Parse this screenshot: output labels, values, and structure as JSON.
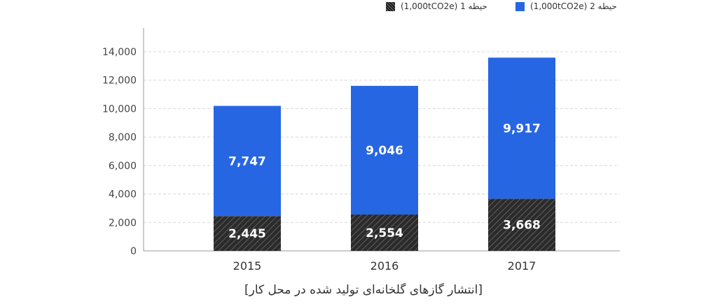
{
  "legend": {
    "scope2": "(1,000tCO2e) حیطه 2",
    "scope1": "(1,000tCO2e) حیطه 1"
  },
  "caption": "[انتشار گازهای گلخانه‌ای تولید شده در محل کار]",
  "colors": {
    "scope2": "#2766e3",
    "scope1": "#2b2b2b",
    "grid": "#d8d8d8",
    "axis": "#999999"
  },
  "chart_data": {
    "type": "bar",
    "stacked": true,
    "categories": [
      "2015",
      "2016",
      "2017"
    ],
    "series": [
      {
        "name": "(1,000tCO2e) حیطه 1",
        "values": [
          2445,
          2554,
          3668
        ],
        "labels": [
          "2,445",
          "2,554",
          "3,668"
        ]
      },
      {
        "name": "(1,000tCO2e) حیطه 2",
        "values": [
          7747,
          9046,
          9917
        ],
        "labels": [
          "7,747",
          "9,046",
          "9,917"
        ]
      }
    ],
    "yticks": [
      "0",
      "2,000",
      "4,000",
      "6,000",
      "8,000",
      "10,000",
      "12,000",
      "14,000"
    ],
    "ylim": [
      0,
      14000
    ],
    "grid": true,
    "legend_position": "top-right",
    "title": "",
    "xlabel": "",
    "ylabel": ""
  }
}
